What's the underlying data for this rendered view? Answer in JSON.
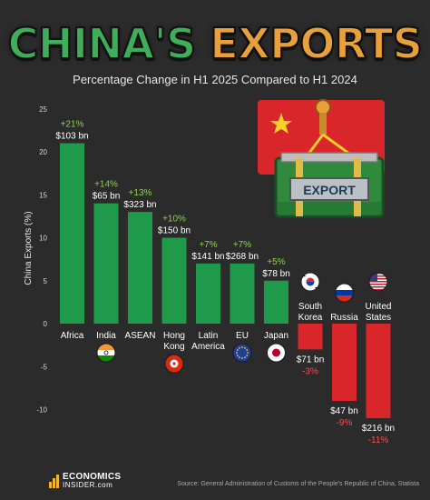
{
  "title": {
    "part1": "CHINA'S",
    "part2": "EXPORTS"
  },
  "subtitle": "Percentage Change in H1 2025 Compared to H1 2024",
  "source": "Source: General Administration of Customs of the People's Republic of China, Statista",
  "logo": {
    "line1": "ECONOMICS",
    "line2": "INSIDER.com"
  },
  "illustration": {
    "label": "EXPORT"
  },
  "colors": {
    "positive": "#1f9a4a",
    "negative": "#d8262b",
    "positive_label": "#8ad24a",
    "negative_label": "#ff4a4a"
  },
  "chart_data": {
    "type": "bar",
    "ylabel": "China Exports (%)",
    "ylim": [
      -12,
      25
    ],
    "yticks": [
      -10,
      -5,
      0,
      5,
      10,
      15,
      20,
      25
    ],
    "grid": false,
    "categories": [
      "Africa",
      "India",
      "ASEAN",
      "Hong Kong",
      "Latin America",
      "EU",
      "Japan",
      "South Korea",
      "Russia",
      "United States"
    ],
    "category_lines": [
      [
        "Africa"
      ],
      [
        "India"
      ],
      [
        "ASEAN"
      ],
      [
        "Hong",
        "Kong"
      ],
      [
        "Latin",
        "America"
      ],
      [
        "EU"
      ],
      [
        "Japan"
      ],
      [
        "South",
        "Korea"
      ],
      [
        "Russia"
      ],
      [
        "United",
        "States"
      ]
    ],
    "values": [
      21,
      14,
      13,
      10,
      7,
      7,
      5,
      -3,
      -9,
      -11
    ],
    "pct_labels": [
      "+21%",
      "+14%",
      "+13%",
      "+10%",
      "+7%",
      "+7%",
      "+5%",
      "-3%",
      "-9%",
      "-11%"
    ],
    "value_labels": [
      "$103 bn",
      "$65 bn",
      "$323 bn",
      "$150 bn",
      "$141 bn",
      "$268 bn",
      "$78 bn",
      "$71 bn",
      "$47 bn",
      "$216 bn"
    ],
    "flags": [
      "",
      "india-flag",
      "",
      "hong-kong-flag",
      "",
      "eu-flag",
      "japan-flag",
      "south-korea-flag",
      "russia-flag",
      "united-states-flag"
    ]
  }
}
